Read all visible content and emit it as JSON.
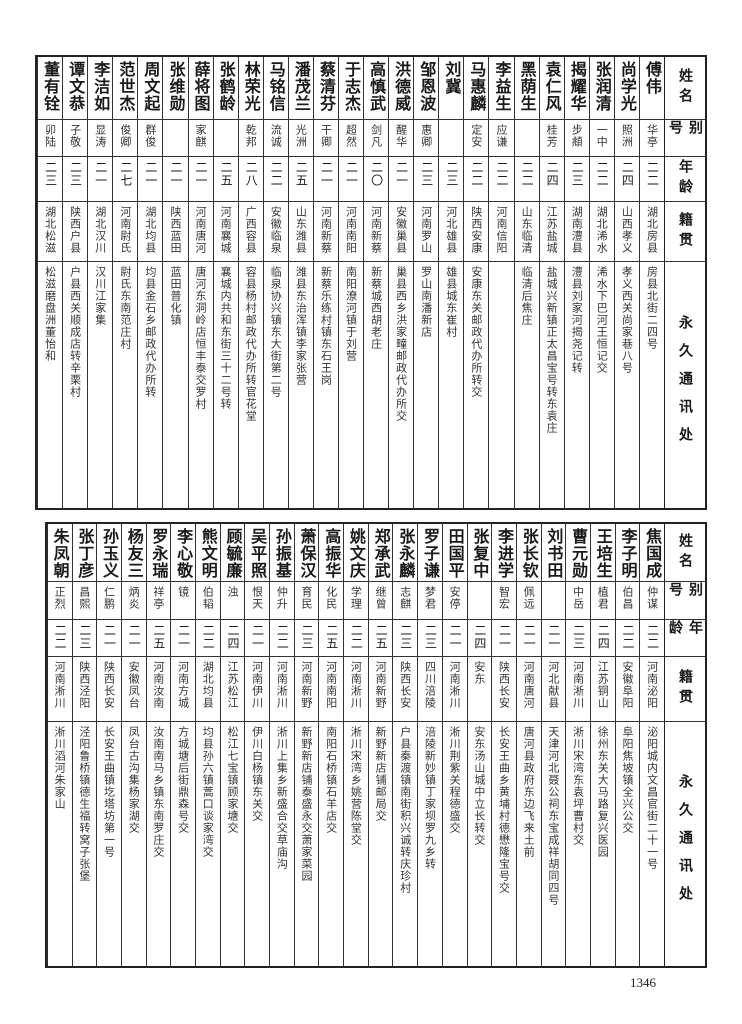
{
  "headers": [
    "姓名",
    "别号",
    "年龄",
    "籍贯",
    "永久通讯处"
  ],
  "tables": [
    [
      {
        "name": "傅伟",
        "alias": "华亭",
        "age": "二二",
        "origin": "湖北房县",
        "address": "房县北街二四号"
      },
      {
        "name": "尚学光",
        "alias": "照洲",
        "age": "二四",
        "origin": "山西孝义",
        "address": "孝义西关尚家巷八号"
      },
      {
        "name": "张润清",
        "alias": "一中",
        "age": "二二",
        "origin": "湖北浠水",
        "address": "浠水下巴河王恒记交"
      },
      {
        "name": "揭耀华",
        "alias": "步頫",
        "age": "二三",
        "origin": "湖南澧县",
        "address": "澧县刘家河揭尧记转"
      },
      {
        "name": "袁仁风",
        "alias": "桂芳",
        "age": "二四",
        "origin": "江苏盐城",
        "address": "盐城兴新镇正太昌宝号转东袁庄"
      },
      {
        "name": "黑荫生",
        "alias": "",
        "age": "二二",
        "origin": "山东临清",
        "address": "临清后焦庄"
      },
      {
        "name": "李益生",
        "alias": "应谦",
        "age": "二二",
        "origin": "河南信阳",
        "address": ""
      },
      {
        "name": "马惠麟",
        "alias": "定安",
        "age": "二二",
        "origin": "陕西安康",
        "address": "安康东关邮政代办所转交"
      },
      {
        "name": "刘冀",
        "alias": "",
        "age": "二三",
        "origin": "河北雄县",
        "address": "雄县城东崔村"
      },
      {
        "name": "邹恩波",
        "alias": "惠卿",
        "age": "二三",
        "origin": "河南罗山",
        "address": "罗山南潘新店"
      },
      {
        "name": "洪德威",
        "alias": "醒华",
        "age": "二一",
        "origin": "安徽巢县",
        "address": "巢县西乡洪家疃邮政代办所交"
      },
      {
        "name": "高慎武",
        "alias": "剑凡",
        "age": "二〇",
        "origin": "河南新蔡",
        "address": "新蔡城西胡老庄"
      },
      {
        "name": "于志杰",
        "alias": "超然",
        "age": "二一",
        "origin": "河南南阳",
        "address": "南阳潦河镇于刘营"
      },
      {
        "name": "蔡清芬",
        "alias": "干卿",
        "age": "二一",
        "origin": "河南新蔡",
        "address": "新蔡乐练村镇东石王岗"
      },
      {
        "name": "潘茂兰",
        "alias": "光洲",
        "age": "二五",
        "origin": "山东潍县",
        "address": "潍县东治浑镇李家张营"
      },
      {
        "name": "马铭信",
        "alias": "流诚",
        "age": "二二",
        "origin": "安徽临泉",
        "address": "临泉协兴镇东大街第二号"
      },
      {
        "name": "林荣光",
        "alias": "乾邦",
        "age": "二八",
        "origin": "广西容县",
        "address": "容县杨村邮政代办所转官花堂"
      },
      {
        "name": "张鹤龄",
        "alias": "",
        "age": "二五",
        "origin": "河南襄城",
        "address": "襄城内共和东街三十二号转"
      },
      {
        "name": "薛将图",
        "alias": "家麒",
        "age": "二一",
        "origin": "河南唐河",
        "address": "唐河东洞岭店恒丰泰交罗村"
      },
      {
        "name": "张维勋",
        "alias": "",
        "age": "二一",
        "origin": "陕西蓝田",
        "address": "蓝田普化镇"
      },
      {
        "name": "周文起",
        "alias": "群俊",
        "age": "二一",
        "origin": "湖北均县",
        "address": "均县金石乡邮政代办所转"
      },
      {
        "name": "范世杰",
        "alias": "俊卿",
        "age": "二七",
        "origin": "河南尉氏",
        "address": "尉氏东南范庄村"
      },
      {
        "name": "李洁如",
        "alias": "显涛",
        "age": "二一",
        "origin": "湖北汉川",
        "address": "汉川江家集"
      },
      {
        "name": "谭文恭",
        "alias": "子敬",
        "age": "二三",
        "origin": "陕西户县",
        "address": "户县西关顺成店转辛栗村"
      },
      {
        "name": "董有铨",
        "alias": "卯陆",
        "age": "二三",
        "origin": "湖北松滋",
        "address": "松滋磨盘洲董怡和"
      }
    ],
    [
      {
        "name": "焦国成",
        "alias": "仲谋",
        "age": "二二",
        "origin": "河南泌阳",
        "address": "泌阳城内文昌官街二十一号"
      },
      {
        "name": "李子明",
        "alias": "伯昌",
        "age": "二二",
        "origin": "安徽阜阳",
        "address": "阜阳焦坡镇全兴公交"
      },
      {
        "name": "王培生",
        "alias": "植君",
        "age": "二四",
        "origin": "江苏铜山",
        "address": "徐州东关大马路复兴医园"
      },
      {
        "name": "曹元勋",
        "alias": "中岳",
        "age": "二三",
        "origin": "河南淅川",
        "address": "淅川宋湾东袁坪曹村交"
      },
      {
        "name": "刘书田",
        "alias": "",
        "age": "二一",
        "origin": "河北献县",
        "address": "天津河北聂公祠东宝成祥胡同四号"
      },
      {
        "name": "张长钦",
        "alias": "佩远",
        "age": "二一",
        "origin": "河南唐河",
        "address": "唐河县政府东边飞来土前"
      },
      {
        "name": "李进学",
        "alias": "智宏",
        "age": "二一",
        "origin": "陕西长安",
        "address": "长安王曲乡黄埔村德懋隆宝号交"
      },
      {
        "name": "张复中",
        "alias": "",
        "age": "二四",
        "origin": "安东",
        "address": "安东汤山城中立长转交"
      },
      {
        "name": "田国平",
        "alias": "安停",
        "age": "二一",
        "origin": "河南淅川",
        "address": "淅川荆紫关程德盛交"
      },
      {
        "name": "罗子谦",
        "alias": "梦君",
        "age": "二三",
        "origin": "四川涪陵",
        "address": "涪陵新妙镇丁家坝罗九乡转"
      },
      {
        "name": "张永麟",
        "alias": "志麒",
        "age": "二三",
        "origin": "陕西长安",
        "address": "户县秦渡镇南街积兴诚转庆珍村"
      },
      {
        "name": "郑承武",
        "alias": "继曾",
        "age": "二五",
        "origin": "河南新野",
        "address": "新野新店铺邮局交"
      },
      {
        "name": "姚文庆",
        "alias": "学理",
        "age": "二二",
        "origin": "河南淅川",
        "address": "淅川宋湾乡姚营陈堂交"
      },
      {
        "name": "高振华",
        "alias": "化民",
        "age": "二五",
        "origin": "河南南阳",
        "address": "南阳石桥镇石羊店交"
      },
      {
        "name": "萧保汉",
        "alias": "育民",
        "age": "二三",
        "origin": "河南新野",
        "address": "新野新店铺泰盛永交萧家菜园"
      },
      {
        "name": "孙振基",
        "alias": "仲升",
        "age": "二二",
        "origin": "河南淅川",
        "address": "淅川上集乡新盛合交草庙沟"
      },
      {
        "name": "吴平照",
        "alias": "恨天",
        "age": "二一",
        "origin": "河南伊川",
        "address": "伊川白杨镇东关交"
      },
      {
        "name": "顾毓廉",
        "alias": "浊",
        "age": "二四",
        "origin": "江苏松江",
        "address": "松江七宝镇顾家塘交"
      },
      {
        "name": "熊文明",
        "alias": "伯韬",
        "age": "二二",
        "origin": "湖北均县",
        "address": "均县孙六镇蒿口谈家湾交"
      },
      {
        "name": "李心敬",
        "alias": "镜",
        "age": "二一",
        "origin": "河南方城",
        "address": "方城塘后街鼎森号交"
      },
      {
        "name": "罗永瑞",
        "alias": "祥亭",
        "age": "二五",
        "origin": "河南汝南",
        "address": "汝南南马乡镇东南罗庄交"
      },
      {
        "name": "杨友三",
        "alias": "炳炎",
        "age": "二一",
        "origin": "安徽凤台",
        "address": "凤台古沟集杨家湖交"
      },
      {
        "name": "孙玉义",
        "alias": "仁鹏",
        "age": "二一",
        "origin": "陕西长安",
        "address": "长安王曲镇圪塔坊第一号"
      },
      {
        "name": "张丁彦",
        "alias": "昌熙",
        "age": "二三",
        "origin": "陕西泾阳",
        "address": "泾阳鲁桥镇德生福转窝子张堡"
      },
      {
        "name": "朱凤朝",
        "alias": "正烈",
        "age": "二二",
        "origin": "河南淅川",
        "address": "淅川滔河朱家山"
      }
    ]
  ],
  "page_number": "1346"
}
